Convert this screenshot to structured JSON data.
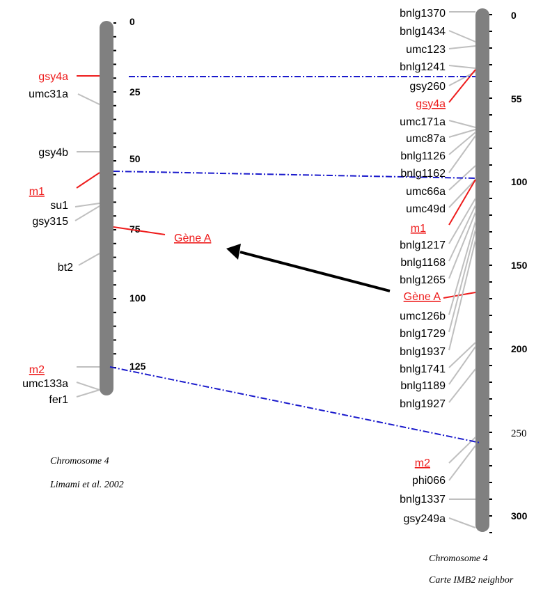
{
  "left_map": {
    "ticks": [
      "0",
      "25",
      "50",
      "75",
      "100",
      "125"
    ],
    "markers": [
      {
        "label": "gsy4a",
        "highlight": true
      },
      {
        "label": "umc31a",
        "highlight": false
      },
      {
        "label": "gsy4b",
        "highlight": false
      },
      {
        "label": "m1",
        "highlight": true
      },
      {
        "label": "su1",
        "highlight": false
      },
      {
        "label": "gsy315",
        "highlight": false
      },
      {
        "label": "bt2",
        "highlight": false
      },
      {
        "label": "m2",
        "highlight": true
      },
      {
        "label": "umc133a",
        "highlight": false
      },
      {
        "label": "fer1",
        "highlight": false
      }
    ],
    "gene_label": "Gène A",
    "caption_line1": "Chromosome 4",
    "caption_line2": "Limami et al. 2002"
  },
  "right_map": {
    "ticks": [
      "0",
      "55",
      "100",
      "150",
      "200",
      "250",
      "300"
    ],
    "markers": [
      {
        "label": "bnlg1370",
        "highlight": false
      },
      {
        "label": "bnlg1434",
        "highlight": false
      },
      {
        "label": "umc123",
        "highlight": false
      },
      {
        "label": "bnlg1241",
        "highlight": false
      },
      {
        "label": "gsy260",
        "highlight": false
      },
      {
        "label": "gsy4a",
        "highlight": true
      },
      {
        "label": "umc171a",
        "highlight": false
      },
      {
        "label": "umc87a",
        "highlight": false
      },
      {
        "label": "bnlg1126",
        "highlight": false
      },
      {
        "label": "bnlg1162",
        "highlight": false
      },
      {
        "label": "umc66a",
        "highlight": false
      },
      {
        "label": "umc49d",
        "highlight": false
      },
      {
        "label": "m1",
        "highlight": true
      },
      {
        "label": "bnlg1217",
        "highlight": false
      },
      {
        "label": "bnlg1168",
        "highlight": false
      },
      {
        "label": "bnlg1265",
        "highlight": false
      },
      {
        "label": "Gène A",
        "highlight": true
      },
      {
        "label": "umc126b",
        "highlight": false
      },
      {
        "label": "bnlg1729",
        "highlight": false
      },
      {
        "label": "bnlg1937",
        "highlight": false
      },
      {
        "label": "bnlg1741",
        "highlight": false
      },
      {
        "label": "bnlg1189",
        "highlight": false
      },
      {
        "label": "bnlg1927",
        "highlight": false
      },
      {
        "label": "m2",
        "highlight": true
      },
      {
        "label": "phi066",
        "highlight": false
      },
      {
        "label": "bnlg1337",
        "highlight": false
      },
      {
        "label": "gsy249a",
        "highlight": false
      }
    ],
    "caption_line1": "Chromosome 4",
    "caption_line2": "Carte IMB2 neighbor"
  },
  "colors": {
    "chromosome": "#808080",
    "connector": "#bfbfbf",
    "highlight": "#ee1c1c",
    "dashed_link": "#1a1acc",
    "arrow": "#000000",
    "text": "#000000"
  }
}
